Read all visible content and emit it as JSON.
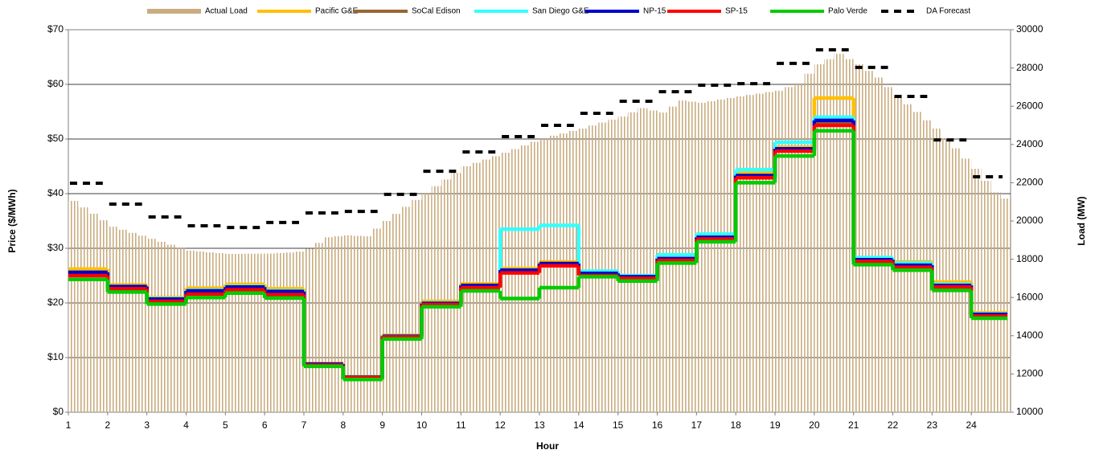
{
  "chart_data": {
    "type": "combo",
    "x_label": "Hour",
    "y_label": "Price ($/MWh)",
    "y2_label": "Load (MW)",
    "xlim": [
      1,
      25
    ],
    "xticks": [
      1,
      2,
      3,
      4,
      5,
      6,
      7,
      8,
      9,
      10,
      11,
      12,
      13,
      14,
      15,
      16,
      17,
      18,
      19,
      20,
      21,
      22,
      23,
      24
    ],
    "ylim": [
      0,
      70
    ],
    "yticks": [
      {
        "value": 0,
        "label": "$0"
      },
      {
        "value": 10,
        "label": "$10"
      },
      {
        "value": 20,
        "label": "$20"
      },
      {
        "value": 30,
        "label": "$30"
      },
      {
        "value": 40,
        "label": "$40"
      },
      {
        "value": 50,
        "label": "$50"
      },
      {
        "value": 60,
        "label": "$60"
      },
      {
        "value": 70,
        "label": "$70"
      }
    ],
    "y2lim": [
      10000,
      30000
    ],
    "y2ticks": [
      10000,
      12000,
      14000,
      16000,
      18000,
      20000,
      22000,
      24000,
      26000,
      28000,
      30000
    ],
    "grid": true,
    "legend": "top",
    "x": [
      1,
      2,
      3,
      4,
      5,
      6,
      7,
      8,
      9,
      10,
      11,
      12,
      13,
      14,
      15,
      16,
      17,
      18,
      19,
      20,
      21,
      22,
      23,
      24
    ],
    "series": [
      {
        "name": "Actual Load",
        "type": "bar",
        "axis": "y2",
        "color": "#c9ac80",
        "x": [
          1,
          1.25,
          1.5,
          1.75,
          2,
          2.25,
          2.5,
          2.75,
          3,
          3.25,
          3.5,
          3.75,
          4,
          4.25,
          4.5,
          4.75,
          5,
          5.25,
          5.5,
          5.75,
          6,
          6.25,
          6.5,
          6.75,
          7,
          7.25,
          7.5,
          7.75,
          8,
          8.25,
          8.5,
          8.75,
          9,
          9.25,
          9.5,
          9.75,
          10,
          10.25,
          10.5,
          10.75,
          11,
          11.25,
          11.5,
          11.75,
          12,
          12.25,
          12.5,
          12.75,
          13,
          13.25,
          13.5,
          13.75,
          14,
          14.25,
          14.5,
          14.75,
          15,
          15.25,
          15.5,
          15.75,
          16,
          16.25,
          16.5,
          16.75,
          17,
          17.25,
          17.5,
          17.75,
          18,
          18.25,
          18.5,
          18.75,
          19,
          19.25,
          19.5,
          19.75,
          20,
          20.25,
          20.5,
          20.75,
          21,
          21.25,
          21.5,
          21.75,
          22,
          22.25,
          22.5,
          22.75,
          23,
          23.25,
          23.5,
          23.75,
          24,
          24.25,
          24.5,
          24.75
        ],
        "values": [
          21050,
          20710,
          20380,
          20040,
          19700,
          19540,
          19380,
          19230,
          19070,
          18910,
          18760,
          18600,
          18450,
          18410,
          18360,
          18320,
          18280,
          18280,
          18290,
          18290,
          18300,
          18330,
          18350,
          18400,
          18550,
          18850,
          19150,
          19200,
          19250,
          19220,
          19200,
          19600,
          20000,
          20370,
          20740,
          21100,
          21470,
          21820,
          22170,
          22510,
          22860,
          23040,
          23210,
          23390,
          23570,
          23760,
          23950,
          24140,
          24330,
          24460,
          24580,
          24710,
          24830,
          24990,
          25150,
          25300,
          25460,
          25680,
          25900,
          25780,
          25670,
          25980,
          26300,
          26240,
          26180,
          26260,
          26350,
          26430,
          26510,
          26590,
          26660,
          26740,
          26810,
          27000,
          27200,
          27700,
          28190,
          28460,
          28740,
          28460,
          28190,
          27850,
          27500,
          27000,
          26510,
          26100,
          25700,
          25260,
          24830,
          24300,
          23800,
          23260,
          22730,
          22100,
          21500,
          21170
        ]
      },
      {
        "name": "Pacific G&E",
        "type": "step",
        "color": "#ffc000",
        "values": [
          26.2,
          23.3,
          21,
          22.7,
          23.4,
          22.6,
          8.9,
          6.5,
          14.1,
          20.3,
          23.5,
          26.3,
          27.5,
          25.7,
          25,
          28.5,
          32.2,
          43.8,
          48.5,
          57.5,
          28,
          27.5,
          23.8,
          18.2
        ]
      },
      {
        "name": "SoCal Edison",
        "type": "step",
        "color": "#996633",
        "values": [
          25.2,
          22.8,
          20.5,
          21.9,
          22.6,
          21.8,
          8.7,
          6.3,
          13.9,
          19.8,
          23,
          25.8,
          27,
          25.2,
          24.6,
          27.9,
          31.8,
          43.2,
          48,
          52.8,
          27.8,
          26.8,
          23,
          17.8
        ]
      },
      {
        "name": "San Diego G&E",
        "type": "step",
        "color": "#33ffff",
        "values": [
          25.5,
          23,
          20.8,
          22.3,
          23,
          22.2,
          8.8,
          6.4,
          14,
          20,
          23.2,
          33.5,
          34.2,
          25.8,
          25,
          28.8,
          32.6,
          44.4,
          49.4,
          54,
          28.3,
          27.3,
          23.4,
          18
        ]
      },
      {
        "name": "NP-15",
        "type": "step",
        "color": "#0000cc",
        "values": [
          25.6,
          23,
          20.7,
          22.2,
          22.9,
          22.1,
          8.8,
          6.4,
          13.9,
          19.9,
          23.2,
          26,
          27.2,
          25.4,
          24.8,
          28.1,
          32,
          43.3,
          48.2,
          53.4,
          27.9,
          26.9,
          23.2,
          17.9
        ]
      },
      {
        "name": "SP-15",
        "type": "step",
        "color": "#ff0000",
        "values": [
          25,
          22.6,
          20.3,
          21.6,
          22.4,
          21.5,
          8.6,
          6.3,
          13.8,
          19.7,
          22.8,
          25.5,
          26.8,
          25,
          24.5,
          27.8,
          31.7,
          42.9,
          47.8,
          52.5,
          27.6,
          26.5,
          22.9,
          17.6
        ]
      },
      {
        "name": "Palo Verde",
        "type": "step",
        "color": "#00cc00",
        "values": [
          24.3,
          22,
          19.8,
          21,
          21.8,
          20.9,
          8.4,
          6,
          13.4,
          19.3,
          22.2,
          20.8,
          22.8,
          24.8,
          24,
          27.3,
          31.2,
          42,
          46.9,
          51.5,
          27,
          26,
          22.3,
          17.2
        ]
      },
      {
        "name": "DA Forecast",
        "type": "dashed-step",
        "axis": "y2",
        "color": "#000000",
        "values": [
          21975,
          20880,
          20210,
          19750,
          19660,
          19920,
          20420,
          20500,
          21390,
          22600,
          23610,
          24410,
          25000,
          25630,
          26260,
          26760,
          27100,
          27180,
          28240,
          28950,
          28030,
          26510,
          24240,
          22310
        ]
      }
    ]
  }
}
